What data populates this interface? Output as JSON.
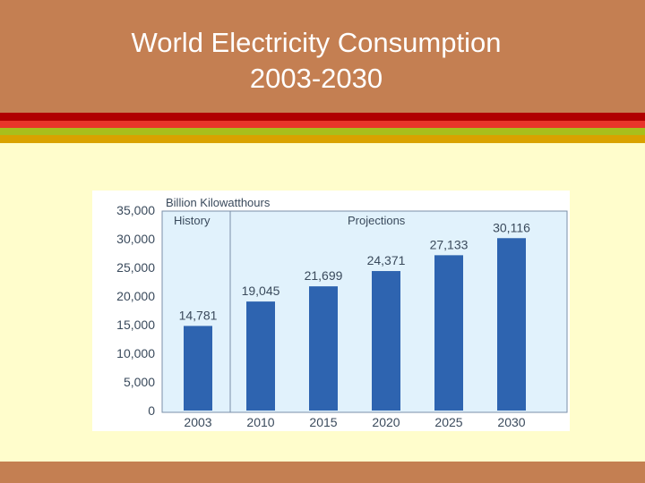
{
  "slide": {
    "title": "World Electricity Consumption\n2003-2030"
  },
  "colors": {
    "header": "#C47F52",
    "background": "#FFFDCC",
    "bar": "#2E64B0",
    "panel": "#E1F2FC"
  },
  "chart_data": {
    "type": "bar",
    "unit_label": "Billion Kilowatthours",
    "categories": [
      "2003",
      "2010",
      "2015",
      "2020",
      "2025",
      "2030"
    ],
    "values": [
      14781,
      19045,
      21699,
      24371,
      27133,
      30116
    ],
    "value_labels": [
      "14,781",
      "19,045",
      "21,699",
      "24,371",
      "27,133",
      "30,116"
    ],
    "yticks": [
      "0",
      "5,000",
      "10,000",
      "15,000",
      "20,000",
      "25,000",
      "30,000",
      "35,000"
    ],
    "ylim": [
      0,
      35000
    ],
    "sections": [
      "History",
      "Projections"
    ],
    "grid": false
  }
}
